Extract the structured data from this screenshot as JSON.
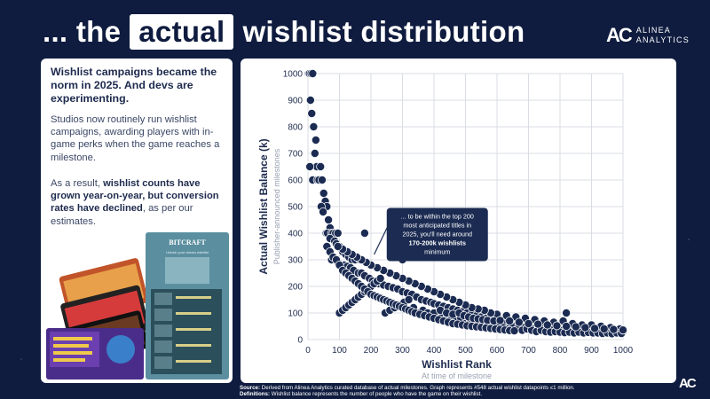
{
  "header": {
    "title_prefix": "... the",
    "title_highlight": "actual",
    "title_suffix": "wishlist distribution",
    "brand_line1": "ALINEA",
    "brand_line2": "ANALYTICS",
    "logo_mark": "AC"
  },
  "left_panel": {
    "lead": "Wishlist campaigns became the norm in 2025. And devs are experimenting.",
    "para1": "Studios now routinely run wishlist campaigns, awarding players with in-game perks when the game reaches a milestone.",
    "para2_prefix": "As a result, ",
    "para2_bold": "wishlist counts have grown year-on-year, but conversion rates have declined",
    "para2_suffix": ", as per our estimates.",
    "promo_art_title": "BITCRAFT",
    "promo_caption": "Unlock your dream wishlist"
  },
  "chart_data": {
    "type": "scatter",
    "xlabel": "Wishlist Rank",
    "xsublabel": "At time of milestone",
    "ylabel": "Actual Wishlist Balance (k)",
    "ysublabel": "Publisher-announced milestones",
    "xlim": [
      0,
      1000
    ],
    "ylim": [
      0,
      1000
    ],
    "xticks": [
      0,
      100,
      200,
      300,
      400,
      500,
      600,
      700,
      800,
      900,
      1000
    ],
    "yticks": [
      0,
      100,
      200,
      300,
      400,
      500,
      600,
      700,
      800,
      900,
      1000
    ],
    "grid": true,
    "point_color": "#1b2b52",
    "annotation": {
      "lines": [
        "... to be within the top 200",
        "most anticipated titles in",
        "2025, you'll need around"
      ],
      "bold": "170-200k wishlists",
      "tail": "minimum"
    },
    "points": [
      [
        2,
        1000
      ],
      [
        5,
        1000
      ],
      [
        10,
        1000
      ],
      [
        15,
        1000
      ],
      [
        8,
        900
      ],
      [
        12,
        850
      ],
      [
        18,
        800
      ],
      [
        25,
        750
      ],
      [
        22,
        700
      ],
      [
        28,
        650
      ],
      [
        6,
        650
      ],
      [
        15,
        600
      ],
      [
        30,
        600
      ],
      [
        35,
        600
      ],
      [
        45,
        600
      ],
      [
        40,
        650
      ],
      [
        50,
        550
      ],
      [
        55,
        520
      ],
      [
        60,
        500
      ],
      [
        42,
        500
      ],
      [
        48,
        480
      ],
      [
        65,
        450
      ],
      [
        70,
        420
      ],
      [
        58,
        400
      ],
      [
        62,
        400
      ],
      [
        75,
        400
      ],
      [
        80,
        400
      ],
      [
        88,
        400
      ],
      [
        95,
        400
      ],
      [
        180,
        400
      ],
      [
        70,
        380
      ],
      [
        85,
        370
      ],
      [
        90,
        360
      ],
      [
        100,
        350
      ],
      [
        105,
        340
      ],
      [
        110,
        330
      ],
      [
        120,
        320
      ],
      [
        130,
        310
      ],
      [
        140,
        300
      ],
      [
        150,
        300
      ],
      [
        165,
        300
      ],
      [
        300,
        300
      ],
      [
        75,
        300
      ],
      [
        95,
        290
      ],
      [
        115,
        280
      ],
      [
        125,
        275
      ],
      [
        135,
        270
      ],
      [
        145,
        260
      ],
      [
        160,
        250
      ],
      [
        170,
        250
      ],
      [
        180,
        240
      ],
      [
        195,
        230
      ],
      [
        205,
        220
      ],
      [
        215,
        215
      ],
      [
        225,
        210
      ],
      [
        240,
        205
      ],
      [
        255,
        200
      ],
      [
        270,
        195
      ],
      [
        285,
        190
      ],
      [
        300,
        180
      ],
      [
        315,
        175
      ],
      [
        330,
        170
      ],
      [
        345,
        160
      ],
      [
        360,
        150
      ],
      [
        375,
        145
      ],
      [
        390,
        140
      ],
      [
        400,
        135
      ],
      [
        415,
        130
      ],
      [
        430,
        125
      ],
      [
        445,
        120
      ],
      [
        460,
        115
      ],
      [
        475,
        110
      ],
      [
        490,
        105
      ],
      [
        505,
        100
      ],
      [
        520,
        95
      ],
      [
        535,
        90
      ],
      [
        550,
        85
      ],
      [
        565,
        80
      ],
      [
        580,
        75
      ],
      [
        595,
        70
      ],
      [
        610,
        65
      ],
      [
        625,
        60
      ],
      [
        640,
        55
      ],
      [
        655,
        50
      ],
      [
        670,
        50
      ],
      [
        685,
        45
      ],
      [
        700,
        45
      ],
      [
        715,
        40
      ],
      [
        730,
        40
      ],
      [
        745,
        40
      ],
      [
        760,
        38
      ],
      [
        775,
        36
      ],
      [
        790,
        35
      ],
      [
        805,
        34
      ],
      [
        820,
        33
      ],
      [
        835,
        32
      ],
      [
        850,
        32
      ],
      [
        865,
        31
      ],
      [
        880,
        30
      ],
      [
        895,
        30
      ],
      [
        910,
        30
      ],
      [
        925,
        29
      ],
      [
        940,
        28
      ],
      [
        955,
        28
      ],
      [
        970,
        27
      ],
      [
        985,
        27
      ],
      [
        1000,
        30
      ],
      [
        990,
        40
      ],
      [
        960,
        45
      ],
      [
        930,
        50
      ],
      [
        900,
        55
      ],
      [
        870,
        55
      ],
      [
        840,
        60
      ],
      [
        820,
        100
      ],
      [
        810,
        70
      ],
      [
        780,
        65
      ],
      [
        750,
        70
      ],
      [
        720,
        75
      ],
      [
        690,
        80
      ],
      [
        660,
        85
      ],
      [
        630,
        90
      ],
      [
        600,
        95
      ],
      [
        580,
        100
      ],
      [
        560,
        110
      ],
      [
        540,
        115
      ],
      [
        520,
        120
      ],
      [
        500,
        130
      ],
      [
        480,
        140
      ],
      [
        460,
        150
      ],
      [
        440,
        160
      ],
      [
        420,
        170
      ],
      [
        400,
        180
      ],
      [
        380,
        190
      ],
      [
        360,
        200
      ],
      [
        340,
        210
      ],
      [
        320,
        220
      ],
      [
        300,
        230
      ],
      [
        280,
        240
      ],
      [
        260,
        250
      ],
      [
        240,
        260
      ],
      [
        220,
        270
      ],
      [
        200,
        280
      ],
      [
        185,
        290
      ],
      [
        170,
        300
      ],
      [
        155,
        310
      ],
      [
        140,
        320
      ],
      [
        125,
        330
      ],
      [
        110,
        340
      ],
      [
        95,
        350
      ],
      [
        100,
        100
      ],
      [
        110,
        110
      ],
      [
        120,
        120
      ],
      [
        130,
        130
      ],
      [
        140,
        140
      ],
      [
        150,
        150
      ],
      [
        160,
        160
      ],
      [
        170,
        170
      ],
      [
        180,
        180
      ],
      [
        190,
        190
      ],
      [
        200,
        200
      ],
      [
        210,
        210
      ],
      [
        220,
        220
      ],
      [
        230,
        230
      ],
      [
        245,
        100
      ],
      [
        260,
        110
      ],
      [
        275,
        120
      ],
      [
        290,
        130
      ],
      [
        305,
        140
      ],
      [
        320,
        150
      ],
      [
        335,
        120
      ],
      [
        350,
        100
      ],
      [
        365,
        110
      ],
      [
        380,
        100
      ],
      [
        395,
        90
      ],
      [
        410,
        95
      ],
      [
        425,
        85
      ],
      [
        440,
        80
      ],
      [
        455,
        75
      ],
      [
        470,
        70
      ],
      [
        485,
        80
      ],
      [
        500,
        60
      ],
      [
        515,
        70
      ],
      [
        530,
        65
      ],
      [
        545,
        60
      ],
      [
        560,
        55
      ],
      [
        575,
        50
      ],
      [
        590,
        45
      ],
      [
        605,
        50
      ],
      [
        620,
        45
      ],
      [
        635,
        40
      ],
      [
        650,
        45
      ],
      [
        665,
        40
      ],
      [
        680,
        35
      ],
      [
        695,
        40
      ],
      [
        710,
        35
      ],
      [
        725,
        30
      ],
      [
        740,
        35
      ],
      [
        755,
        30
      ],
      [
        770,
        28
      ],
      [
        785,
        30
      ],
      [
        800,
        28
      ],
      [
        815,
        26
      ],
      [
        830,
        28
      ],
      [
        845,
        25
      ],
      [
        860,
        28
      ],
      [
        875,
        25
      ],
      [
        890,
        27
      ],
      [
        905,
        25
      ],
      [
        920,
        25
      ],
      [
        935,
        23
      ],
      [
        950,
        25
      ],
      [
        965,
        22
      ],
      [
        980,
        25
      ],
      [
        995,
        23
      ],
      [
        400,
        100
      ],
      [
        420,
        110
      ],
      [
        440,
        100
      ],
      [
        460,
        95
      ],
      [
        480,
        100
      ],
      [
        495,
        90
      ],
      [
        510,
        85
      ],
      [
        525,
        80
      ],
      [
        540,
        78
      ],
      [
        555,
        75
      ],
      [
        570,
        72
      ],
      [
        590,
        70
      ],
      [
        610,
        72
      ],
      [
        640,
        70
      ],
      [
        670,
        65
      ],
      [
        700,
        60
      ],
      [
        730,
        58
      ],
      [
        760,
        55
      ],
      [
        790,
        52
      ],
      [
        820,
        50
      ],
      [
        850,
        48
      ],
      [
        880,
        45
      ],
      [
        910,
        42
      ],
      [
        940,
        40
      ],
      [
        970,
        38
      ],
      [
        1000,
        36
      ],
      [
        60,
        350
      ],
      [
        70,
        330
      ],
      [
        80,
        310
      ],
      [
        90,
        300
      ],
      [
        100,
        280
      ],
      [
        110,
        260
      ],
      [
        120,
        250
      ],
      [
        130,
        240
      ],
      [
        140,
        230
      ],
      [
        150,
        220
      ],
      [
        160,
        210
      ],
      [
        170,
        200
      ],
      [
        180,
        190
      ],
      [
        190,
        180
      ],
      [
        200,
        170
      ],
      [
        210,
        165
      ],
      [
        220,
        160
      ],
      [
        230,
        155
      ],
      [
        240,
        150
      ],
      [
        250,
        145
      ],
      [
        260,
        140
      ],
      [
        270,
        135
      ],
      [
        280,
        130
      ],
      [
        290,
        125
      ],
      [
        300,
        120
      ],
      [
        310,
        115
      ],
      [
        320,
        110
      ],
      [
        330,
        105
      ],
      [
        340,
        100
      ],
      [
        355,
        95
      ],
      [
        370,
        90
      ],
      [
        385,
        85
      ],
      [
        400,
        80
      ],
      [
        415,
        75
      ],
      [
        430,
        70
      ],
      [
        445,
        65
      ],
      [
        460,
        60
      ],
      [
        475,
        58
      ],
      [
        490,
        55
      ],
      [
        505,
        52
      ],
      [
        520,
        50
      ],
      [
        535,
        48
      ],
      [
        550,
        46
      ],
      [
        565,
        44
      ],
      [
        580,
        42
      ],
      [
        595,
        40
      ],
      [
        610,
        38
      ],
      [
        625,
        36
      ],
      [
        640,
        34
      ],
      [
        655,
        33
      ]
    ]
  }
}
